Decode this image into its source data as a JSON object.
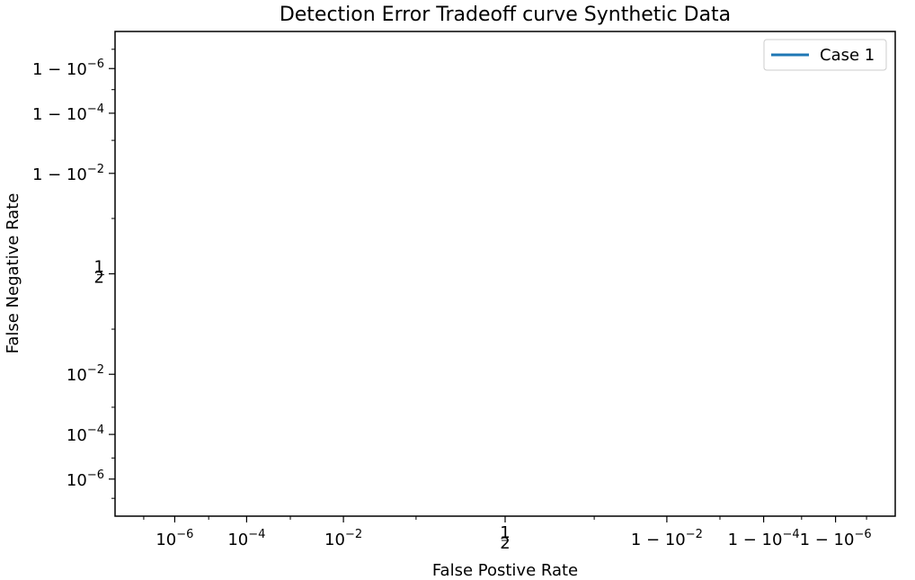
{
  "chart_data": {
    "type": "line",
    "title": "Detection Error Tradeoff curve Synthetic Data",
    "xlabel": "False Postive Rate",
    "ylabel": "False Negative Rate",
    "scale": "probit",
    "xlim": [
      1e-08,
      0.99999999
    ],
    "ylim": [
      1e-08,
      0.99999999
    ],
    "xticks": [
      {
        "value": 1e-06,
        "base": "10",
        "exp": "−6"
      },
      {
        "value": 0.0001,
        "base": "10",
        "exp": "−4"
      },
      {
        "value": 0.01,
        "base": "10",
        "exp": "−2"
      },
      {
        "value": 0.5,
        "frac": "1/2"
      },
      {
        "value": 0.99,
        "base": "1 − 10",
        "exp": "−2"
      },
      {
        "value": 0.9999,
        "base": "1 − 10",
        "exp": "−4"
      },
      {
        "value": 0.999999,
        "base": "1 − 10",
        "exp": "−6"
      }
    ],
    "yticks": [
      {
        "value": 1e-06,
        "base": "10",
        "exp": "−6"
      },
      {
        "value": 0.0001,
        "base": "10",
        "exp": "−4"
      },
      {
        "value": 0.01,
        "base": "10",
        "exp": "−2"
      },
      {
        "value": 0.5,
        "frac": "1/2"
      },
      {
        "value": 0.99,
        "base": "1 − 10",
        "exp": "−2"
      },
      {
        "value": 0.9999,
        "base": "1 − 10",
        "exp": "−4"
      },
      {
        "value": 0.999999,
        "base": "1 − 10",
        "exp": "−6"
      }
    ],
    "minor_ticks": [
      1e-07,
      1e-05,
      0.001,
      0.1,
      0.9,
      0.999,
      0.99999,
      0.9999999
    ],
    "series": [
      {
        "name": "Case 1",
        "color": "#1f77b4",
        "x": [],
        "y": []
      }
    ],
    "grid": false,
    "legend": "top-right"
  }
}
